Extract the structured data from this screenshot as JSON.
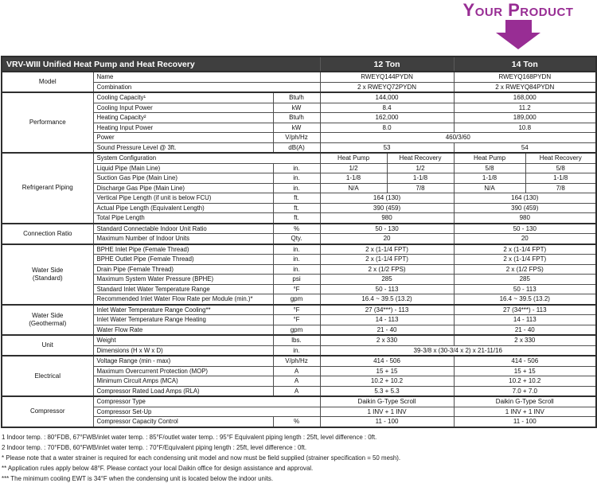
{
  "banner": {
    "label": "Your Product",
    "accent_color": "#982d94"
  },
  "table": {
    "title": "VRV-WIII Unified Heat Pump and Heat Recovery",
    "col_12": "12 Ton",
    "col_14": "14 Ton",
    "header_bg": "#3f3f3f",
    "sections": [
      {
        "group": "Model",
        "rows": [
          {
            "label": "Name",
            "unit": null,
            "type": "pair",
            "v": [
              "RWEYQ144PYDN",
              "RWEYQ168PYDN"
            ]
          },
          {
            "label": "Combination",
            "unit": null,
            "type": "pair",
            "v": [
              "2 x RWEYQ72PYDN",
              "2 x RWEYQ84PYDN"
            ]
          }
        ]
      },
      {
        "group": "Performance",
        "rows": [
          {
            "label": "Cooling Capacity¹",
            "unit": "Btu/h",
            "type": "pair",
            "v": [
              "144,000",
              "168,000"
            ]
          },
          {
            "label": "Cooling Input Power",
            "unit": "kW",
            "type": "pair",
            "v": [
              "8.4",
              "11.2"
            ]
          },
          {
            "label": "Heating Capacity²",
            "unit": "Btu/h",
            "type": "pair",
            "v": [
              "162,000",
              "189,000"
            ]
          },
          {
            "label": "Heating Input Power",
            "unit": "kW",
            "type": "pair",
            "v": [
              "8.0",
              "10.8"
            ]
          },
          {
            "label": "Power",
            "unit": "V/ph/Hz",
            "type": "span",
            "v": [
              "460/3/60"
            ]
          },
          {
            "label": "Sound Pressure Level @ 3ft.",
            "unit": "dB(A)",
            "type": "pair",
            "v": [
              "53",
              "54"
            ]
          }
        ]
      },
      {
        "group": "Refrigerant Piping",
        "rows": [
          {
            "label": "System Configuration",
            "unit": null,
            "type": "quad",
            "v": [
              "Heat Pump",
              "Heat Recovery",
              "Heat Pump",
              "Heat Recovery"
            ]
          },
          {
            "label": "Liquid Pipe (Main Line)",
            "unit": "in.",
            "type": "quad",
            "v": [
              "1/2",
              "1/2",
              "5/8",
              "5/8"
            ]
          },
          {
            "label": "Suction Gas Pipe (Main Line)",
            "unit": "in.",
            "type": "quad",
            "v": [
              "1-1/8",
              "1-1/8",
              "1-1/8",
              "1-1/8"
            ]
          },
          {
            "label": "Discharge Gas Pipe (Main Line)",
            "unit": "in.",
            "type": "quad",
            "v": [
              "N/A",
              "7/8",
              "N/A",
              "7/8"
            ]
          },
          {
            "label": "Vertical Pipe Length (if unit is below FCU)",
            "unit": "ft.",
            "type": "pair",
            "v": [
              "164 (130)",
              "164 (130)"
            ]
          },
          {
            "label": "Actual Pipe Length (Equivalent Length)",
            "unit": "ft.",
            "type": "pair",
            "v": [
              "390 (459)",
              "390 (459)"
            ]
          },
          {
            "label": "Total Pipe Length",
            "unit": "ft.",
            "type": "pair",
            "v": [
              "980",
              "980"
            ]
          }
        ]
      },
      {
        "group": "Connection Ratio",
        "rows": [
          {
            "label": "Standard Connectable Indoor Unit Ratio",
            "unit": "%",
            "type": "pair",
            "v": [
              "50 - 130",
              "50 - 130"
            ]
          },
          {
            "label": "Maximum Number of Indoor Units",
            "unit": "Qty.",
            "type": "pair",
            "v": [
              "20",
              "20"
            ]
          }
        ]
      },
      {
        "group": "Water Side\n(Standard)",
        "rows": [
          {
            "label": "BPHE Inlet Pipe (Female Thread)",
            "unit": "in.",
            "type": "pair",
            "v": [
              "2 x (1-1/4 FPT)",
              "2 x (1-1/4 FPT)"
            ]
          },
          {
            "label": "BPHE Outlet Pipe (Female Thread)",
            "unit": "in.",
            "type": "pair",
            "v": [
              "2 x (1-1/4 FPT)",
              "2 x (1-1/4 FPT)"
            ]
          },
          {
            "label": "Drain Pipe (Female Thread)",
            "unit": "in.",
            "type": "pair",
            "v": [
              "2 x (1/2 FPS)",
              "2 x (1/2 FPS)"
            ]
          },
          {
            "label": "Maximum System Water Pressure (BPHE)",
            "unit": "psi",
            "type": "pair",
            "v": [
              "285",
              "285"
            ]
          },
          {
            "label": "Standard Inlet Water Temperature Range",
            "unit": "°F",
            "type": "pair",
            "v": [
              "50 - 113",
              "50 - 113"
            ]
          },
          {
            "label": "Recommended Inlet Water Flow Rate per Module (min.)*",
            "unit": "gpm",
            "type": "pair",
            "v": [
              "16.4 ~ 39.5 (13.2)",
              "16.4 ~ 39.5 (13.2)"
            ]
          }
        ]
      },
      {
        "group": "Water Side\n(Geothermal)",
        "rows": [
          {
            "label": "Inlet Water Temperature Range Cooling**",
            "unit": "°F",
            "type": "pair",
            "v": [
              "27 (34***) - 113",
              "27 (34***) - 113"
            ]
          },
          {
            "label": "Inlet Water Temperature Range Heating",
            "unit": "°F",
            "type": "pair",
            "v": [
              "14 - 113",
              "14 - 113"
            ]
          },
          {
            "label": "Water Flow Rate",
            "unit": "gpm",
            "type": "pair",
            "v": [
              "21 - 40",
              "21 - 40"
            ]
          }
        ]
      },
      {
        "group": "Unit",
        "rows": [
          {
            "label": "Weight",
            "unit": "lbs.",
            "type": "pair",
            "v": [
              "2 x 330",
              "2 x 330"
            ]
          },
          {
            "label": "Dimensions (H x W x D)",
            "unit": "in.",
            "type": "span",
            "v": [
              "39-3/8 x (30-3/4 x 2) x 21-11/16"
            ]
          }
        ]
      },
      {
        "group": "Electrical",
        "rows": [
          {
            "label": "Voltage Range (min - max)",
            "unit": "V/ph/Hz",
            "type": "pair",
            "v": [
              "414 - 506",
              "414 - 506"
            ]
          },
          {
            "label": "Maximum Overcurrent Protection (MOP)",
            "unit": "A",
            "type": "pair",
            "v": [
              "15 + 15",
              "15 + 15"
            ]
          },
          {
            "label": "Minimum Circuit Amps (MCA)",
            "unit": "A",
            "type": "pair",
            "v": [
              "10.2 + 10.2",
              "10.2 + 10.2"
            ]
          },
          {
            "label": "Compressor Rated Load Amps (RLA)",
            "unit": "A",
            "type": "pair",
            "v": [
              "5.3 + 5.3",
              "7.0 + 7.0"
            ]
          }
        ]
      },
      {
        "group": "Compressor",
        "rows": [
          {
            "label": "Compressor Type",
            "unit": null,
            "type": "pair",
            "v": [
              "Daikin G-Type Scroll",
              "Daikin G-Type Scroll"
            ]
          },
          {
            "label": "Compressor Set-Up",
            "unit": null,
            "type": "pair",
            "v": [
              "1 INV + 1 INV",
              "1 INV + 1 INV"
            ]
          },
          {
            "label": "Compressor Capacity Control",
            "unit": "%",
            "type": "pair",
            "v": [
              "11 - 100",
              "11 - 100"
            ]
          }
        ]
      }
    ]
  },
  "footnotes": [
    "1 Indoor temp. : 80°FDB, 67°FWB/inlet water temp. : 85°F/outlet water temp. : 95°F Equivalent piping length : 25ft, level difference : 0ft.",
    "2 Indoor temp. : 70°FDB, 60°FWB/inlet water temp. : 70°F/Equivalent piping length : 25ft, level difference : 0ft.",
    "* Please note that a water strainer is required for each condensing unit model and now must be field supplied (strainer specification = 50 mesh).",
    "** Application rules apply below 48°F.  Please contact your local Daikin office for design assistance and approval.",
    "*** The minimum cooling EWT is 34°F when the condensing unit is located below the indoor units."
  ]
}
